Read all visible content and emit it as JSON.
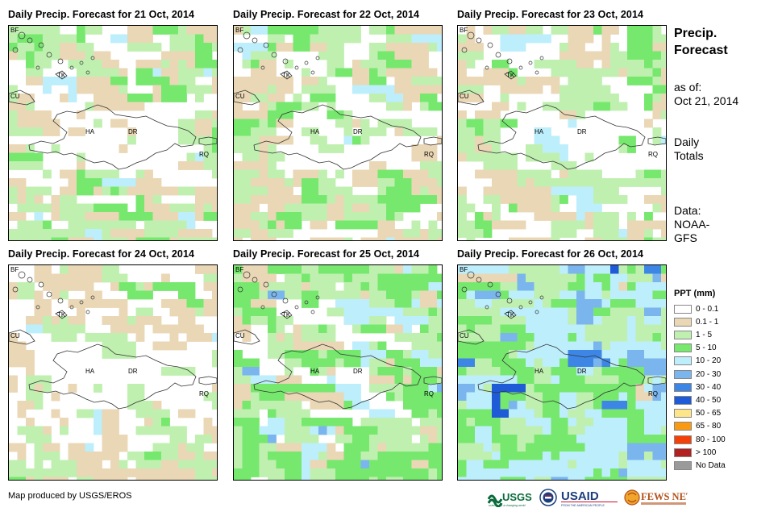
{
  "panels": [
    {
      "title": "Daily Precip. Forecast for 21 Oct, 2014",
      "seed": 11,
      "profile": "light"
    },
    {
      "title": "Daily Precip. Forecast for 22 Oct, 2014",
      "seed": 23,
      "profile": "light"
    },
    {
      "title": "Daily Precip. Forecast for 23 Oct, 2014",
      "seed": 37,
      "profile": "lighter"
    },
    {
      "title": "Daily Precip. Forecast for 24 Oct, 2014",
      "seed": 41,
      "profile": "lightest"
    },
    {
      "title": "Daily Precip. Forecast for 25 Oct, 2014",
      "seed": 53,
      "profile": "medium"
    },
    {
      "title": "Daily Precip. Forecast for 26 Oct, 2014",
      "seed": 67,
      "profile": "heavy"
    }
  ],
  "map_labels": {
    "bf": "BF",
    "tk": "TK",
    "cu": "CU",
    "ha": "HA",
    "dr": "DR",
    "rq": "RQ"
  },
  "side": {
    "title_line1": "Precip.",
    "title_line2": "Forecast",
    "asof_line1": "as of:",
    "asof_line2": "Oct 21, 2014",
    "totals_line1": "Daily",
    "totals_line2": "Totals",
    "data_line1": "Data:",
    "data_line2": "NOAA-",
    "data_line3": "GFS"
  },
  "legend": {
    "title": "PPT (mm)",
    "items": [
      {
        "label": "0 - 0.1",
        "color": "#ffffff"
      },
      {
        "label": "0.1 - 1",
        "color": "#ead7b5"
      },
      {
        "label": "1 - 5",
        "color": "#bff0b0"
      },
      {
        "label": "5 - 10",
        "color": "#76e86e"
      },
      {
        "label": "10 - 20",
        "color": "#bdeefb"
      },
      {
        "label": "20 - 30",
        "color": "#7ab5ee"
      },
      {
        "label": "30 - 40",
        "color": "#3e86e6"
      },
      {
        "label": "40 - 50",
        "color": "#1f5bd6"
      },
      {
        "label": "50 - 65",
        "color": "#fde68a"
      },
      {
        "label": "65 - 80",
        "color": "#f99a12"
      },
      {
        "label": "80 - 100",
        "color": "#f4410a"
      },
      {
        "label": "> 100",
        "color": "#b32020"
      },
      {
        "label": "No Data",
        "color": "#9a9a9a"
      }
    ]
  },
  "footer": {
    "credit": "Map produced by USGS/EROS"
  },
  "logos": {
    "usgs": "USGS",
    "usgs_tag": "science for a changing world",
    "usaid": "USAID",
    "usaid_tag": "FROM THE AMERICAN PEOPLE",
    "fews": "FEWS NET"
  }
}
